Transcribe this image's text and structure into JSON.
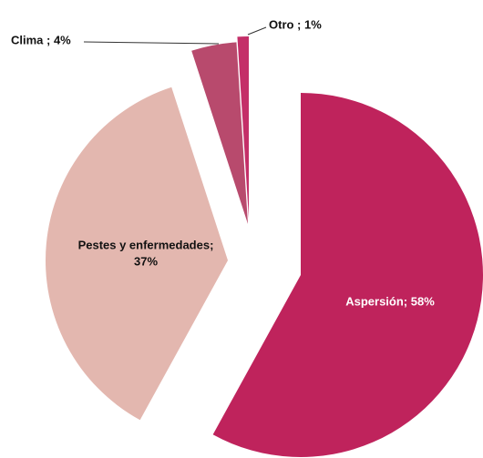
{
  "chart_data": {
    "type": "pie",
    "values": [
      58,
      37,
      4,
      1
    ],
    "value_labels": [
      [
        "Aspersión; 58%"
      ],
      [
        "Pestes y enfermedades;",
        "37%"
      ],
      [
        "Clima ; 4%"
      ],
      [
        "Otro ; 1%"
      ]
    ],
    "colors": [
      "#bf235c",
      "#e3b7af",
      "#b84a6d",
      "#c42f68"
    ]
  }
}
